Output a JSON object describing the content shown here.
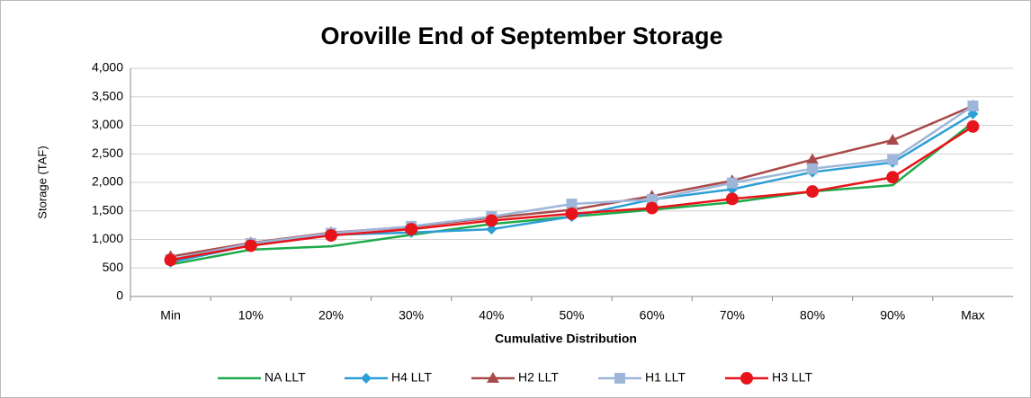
{
  "chart_data": {
    "type": "line",
    "title": "Oroville End of September Storage",
    "x_label": "Cumulative Distribution",
    "y_label": "Storage (TAF)",
    "categories": [
      "Min",
      "10%",
      "20%",
      "30%",
      "40%",
      "50%",
      "60%",
      "70%",
      "80%",
      "90%",
      "Max"
    ],
    "series": [
      {
        "name": "NA LLT",
        "color": "#1faa4a",
        "marker": "none",
        "values": [
          560,
          820,
          880,
          1080,
          1270,
          1400,
          1520,
          1650,
          1840,
          1950,
          3050
        ]
      },
      {
        "name": "H4 LLT",
        "color": "#2e9fd6",
        "marker": "diamond",
        "values": [
          600,
          900,
          1080,
          1120,
          1180,
          1400,
          1700,
          1880,
          2180,
          2350,
          3200
        ]
      },
      {
        "name": "H2 LLT",
        "color": "#a84a4a",
        "marker": "triangle",
        "values": [
          700,
          940,
          1120,
          1220,
          1380,
          1520,
          1760,
          2030,
          2400,
          2740,
          3340
        ]
      },
      {
        "name": "H1 LLT",
        "color": "#9db6d9",
        "marker": "square",
        "values": [
          650,
          930,
          1110,
          1230,
          1400,
          1620,
          1700,
          1990,
          2240,
          2400,
          3340
        ]
      },
      {
        "name": "H3 LLT",
        "color": "#e8141b",
        "marker": "circle",
        "values": [
          640,
          890,
          1070,
          1180,
          1330,
          1450,
          1550,
          1710,
          1840,
          2090,
          2980
        ]
      }
    ],
    "ylim": [
      0,
      4000
    ],
    "yticks": [
      0,
      500,
      {
        "value": 1000,
        "label": "1,000"
      },
      {
        "value": 1500,
        "label": "1,500"
      },
      {
        "value": 2000,
        "label": "2,000"
      },
      {
        "value": 2500,
        "label": "2,500"
      },
      {
        "value": 3000,
        "label": "3,000"
      },
      {
        "value": 3500,
        "label": "3,500"
      },
      {
        "value": 4000,
        "label": "4,000"
      }
    ],
    "grid": true,
    "legend": "bottom"
  }
}
